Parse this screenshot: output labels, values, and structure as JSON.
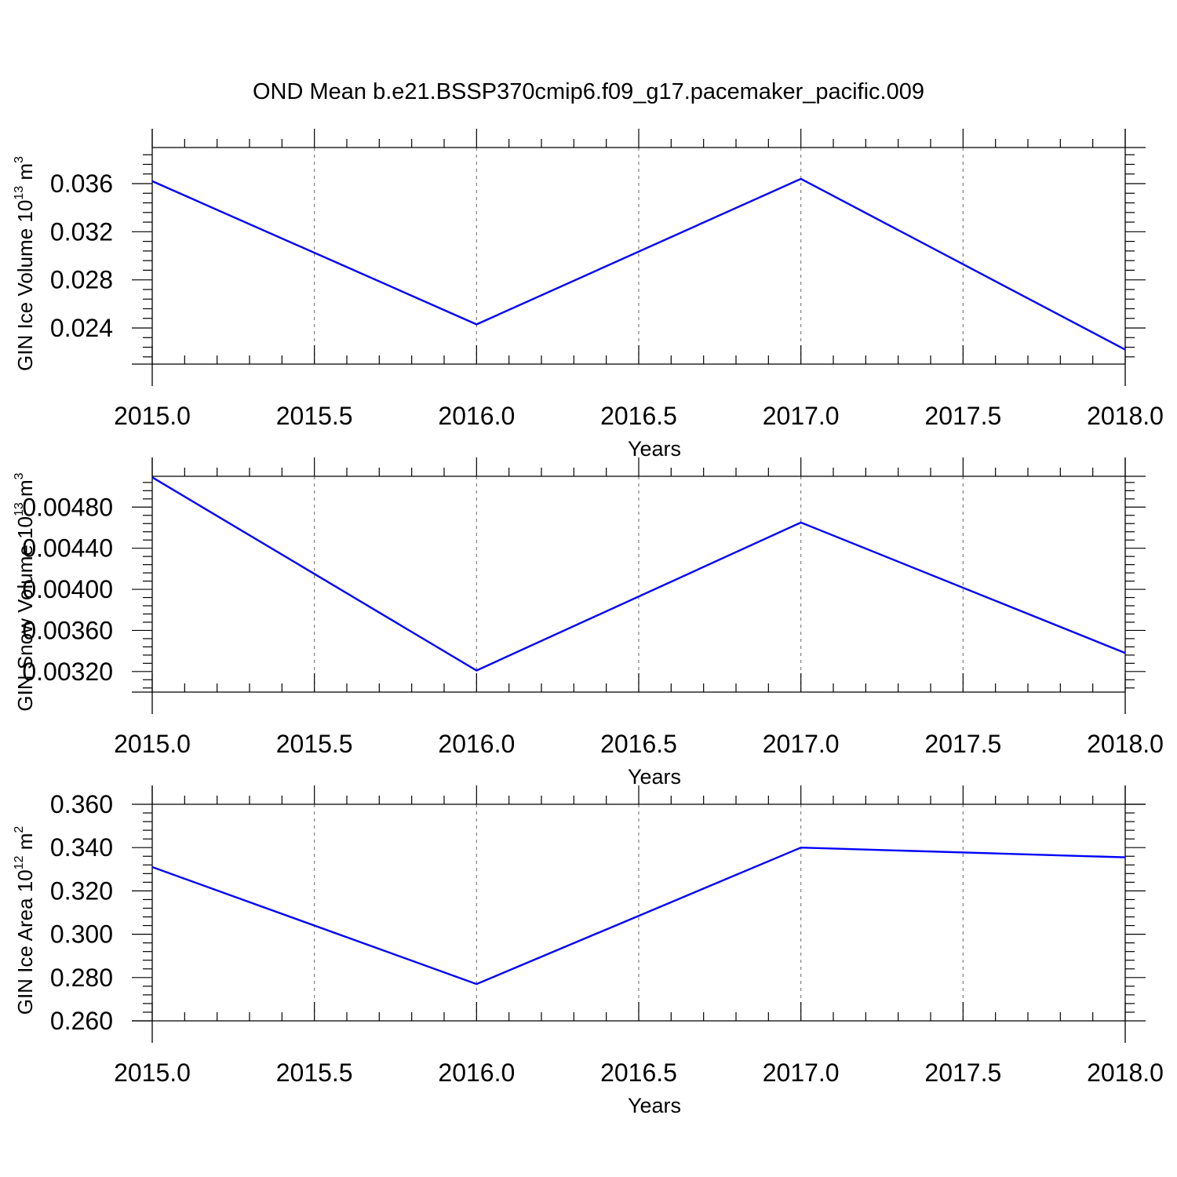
{
  "title": "OND Mean b.e21.BSSP370cmip6.f09_g17.pacemaker_pacific.009",
  "colors": {
    "line": "#0000ff",
    "axis": "#000000",
    "grid": "#808080"
  },
  "chart_data": [
    {
      "type": "line",
      "title": "",
      "xlabel": "Years",
      "ylabel": {
        "text": "GIN Ice Volume 10",
        "exp": "13",
        "unit": " m",
        "unit_exp": "3"
      },
      "xlim": [
        2015.0,
        2018.0
      ],
      "ylim": [
        0.021,
        0.039
      ],
      "x_ticks": [
        "2015.0",
        "2015.5",
        "2016.0",
        "2016.5",
        "2017.0",
        "2017.5",
        "2018.0"
      ],
      "y_ticks": [
        "0.024",
        "0.028",
        "0.032",
        "0.036"
      ],
      "grid": "x-dashed",
      "series": [
        {
          "x": [
            2015.0,
            2016.0,
            2017.0,
            2018.0
          ],
          "values": [
            0.0362,
            0.0243,
            0.0364,
            0.0222
          ]
        }
      ]
    },
    {
      "type": "line",
      "title": "",
      "xlabel": "Years",
      "ylabel": {
        "text": "GIN Snow Volume 10",
        "exp": "13",
        "unit": " m",
        "unit_exp": "3"
      },
      "xlim": [
        2015.0,
        2018.0
      ],
      "ylim": [
        0.003,
        0.0051
      ],
      "x_ticks": [
        "2015.0",
        "2015.5",
        "2016.0",
        "2016.5",
        "2017.0",
        "2017.5",
        "2018.0"
      ],
      "y_ticks": [
        "0.00320",
        "0.00360",
        "0.00400",
        "0.00440",
        "0.00480"
      ],
      "grid": "x-dashed",
      "series": [
        {
          "x": [
            2015.0,
            2016.0,
            2017.0,
            2018.0
          ],
          "values": [
            0.00509,
            0.00321,
            0.00465,
            0.00338
          ]
        }
      ]
    },
    {
      "type": "line",
      "title": "",
      "xlabel": "Years",
      "ylabel": {
        "text": "GIN Ice Area 10",
        "exp": "12",
        "unit": " m",
        "unit_exp": "2"
      },
      "xlim": [
        2015.0,
        2018.0
      ],
      "ylim": [
        0.26,
        0.36
      ],
      "x_ticks": [
        "2015.0",
        "2015.5",
        "2016.0",
        "2016.5",
        "2017.0",
        "2017.5",
        "2018.0"
      ],
      "y_ticks": [
        "0.260",
        "0.280",
        "0.300",
        "0.320",
        "0.340",
        "0.360"
      ],
      "grid": "x-dashed",
      "series": [
        {
          "x": [
            2015.0,
            2016.0,
            2017.0,
            2018.0
          ],
          "values": [
            0.331,
            0.277,
            0.34,
            0.3355
          ]
        }
      ]
    }
  ]
}
